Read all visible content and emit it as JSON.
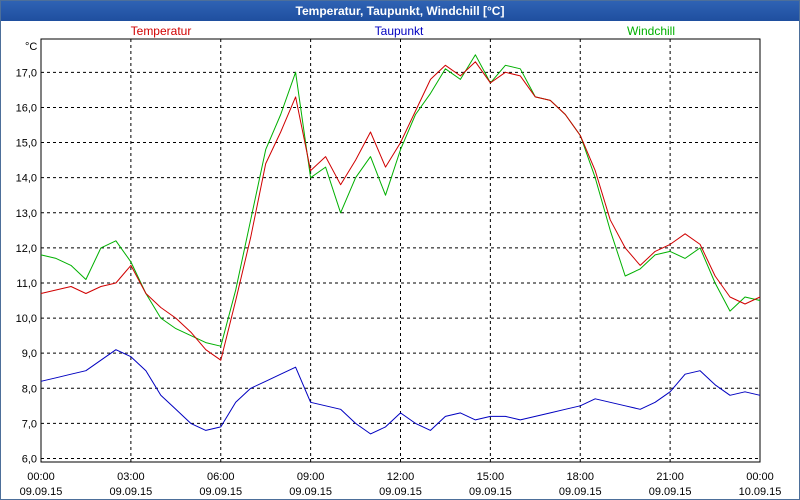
{
  "chart_data": {
    "type": "line",
    "title": "Temperatur, Taupunkt, Windchill [°C]",
    "ylabel": "°C",
    "ylim": [
      5.9,
      17.95
    ],
    "yticks": [
      6.0,
      7.0,
      8.0,
      9.0,
      10.0,
      11.0,
      12.0,
      13.0,
      14.0,
      15.0,
      16.0,
      17.0
    ],
    "ytick_labels": [
      "6,0",
      "7,0",
      "8,0",
      "9,0",
      "10,0",
      "11,0",
      "12,0",
      "13,0",
      "14,0",
      "15,0",
      "16,0",
      "17,0"
    ],
    "xlim": [
      0,
      24
    ],
    "xticks": [
      0,
      3,
      6,
      9,
      12,
      15,
      18,
      21,
      24
    ],
    "xtick_labels": [
      {
        "time": "00:00",
        "date": "09.09.15"
      },
      {
        "time": "03:00",
        "date": "09.09.15"
      },
      {
        "time": "06:00",
        "date": "09.09.15"
      },
      {
        "time": "09:00",
        "date": "09.09.15"
      },
      {
        "time": "12:00",
        "date": "09.09.15"
      },
      {
        "time": "15:00",
        "date": "09.09.15"
      },
      {
        "time": "18:00",
        "date": "09.09.15"
      },
      {
        "time": "21:00",
        "date": "09.09.15"
      },
      {
        "time": "00:00",
        "date": "10.09.15"
      }
    ],
    "grid": true,
    "legend": "top",
    "series": [
      {
        "name": "Temperatur",
        "color": "#d00000",
        "x": [
          0,
          0.5,
          1,
          1.5,
          2,
          2.5,
          3,
          3.5,
          4,
          4.5,
          5,
          5.5,
          6,
          6.5,
          7,
          7.5,
          8,
          8.5,
          9,
          9.5,
          10,
          10.5,
          11,
          11.5,
          12,
          12.5,
          13,
          13.5,
          14,
          14.5,
          15,
          15.5,
          16,
          16.5,
          17,
          17.5,
          18,
          18.5,
          19,
          19.5,
          20,
          20.5,
          21,
          21.5,
          22,
          22.5,
          23,
          23.5,
          24
        ],
        "y": [
          10.7,
          10.8,
          10.9,
          10.7,
          10.9,
          11.0,
          11.5,
          10.7,
          10.3,
          10.0,
          9.6,
          9.1,
          8.8,
          10.5,
          12.3,
          14.4,
          15.3,
          16.3,
          14.2,
          14.6,
          13.8,
          14.5,
          15.3,
          14.3,
          15.0,
          15.9,
          16.8,
          17.2,
          16.9,
          17.3,
          16.7,
          17.0,
          16.9,
          16.3,
          16.2,
          15.8,
          15.2,
          14.2,
          12.8,
          12.0,
          11.5,
          11.9,
          12.1,
          12.4,
          12.1,
          11.2,
          10.6,
          10.4,
          10.6
        ]
      },
      {
        "name": "Taupunkt",
        "color": "#0000c0",
        "x": [
          0,
          0.5,
          1,
          1.5,
          2,
          2.5,
          3,
          3.5,
          4,
          4.5,
          5,
          5.5,
          6,
          6.5,
          7,
          7.5,
          8,
          8.5,
          9,
          9.5,
          10,
          10.5,
          11,
          11.5,
          12,
          12.5,
          13,
          13.5,
          14,
          14.5,
          15,
          15.5,
          16,
          16.5,
          17,
          17.5,
          18,
          18.5,
          19,
          19.5,
          20,
          20.5,
          21,
          21.5,
          22,
          22.5,
          23,
          23.5,
          24
        ],
        "y": [
          8.2,
          8.3,
          8.4,
          8.5,
          8.8,
          9.1,
          8.9,
          8.5,
          7.8,
          7.4,
          7.0,
          6.8,
          6.9,
          7.6,
          8.0,
          8.2,
          8.4,
          8.6,
          7.6,
          7.5,
          7.4,
          7.0,
          6.7,
          6.9,
          7.3,
          7.0,
          6.8,
          7.2,
          7.3,
          7.1,
          7.2,
          7.2,
          7.1,
          7.2,
          7.3,
          7.4,
          7.5,
          7.7,
          7.6,
          7.5,
          7.4,
          7.6,
          7.9,
          8.4,
          8.5,
          8.1,
          7.8,
          7.9,
          7.8
        ]
      },
      {
        "name": "Windchill",
        "color": "#00b000",
        "x": [
          0,
          0.5,
          1,
          1.5,
          2,
          2.5,
          3,
          3.5,
          4,
          4.5,
          5,
          5.5,
          6,
          6.5,
          7,
          7.5,
          8,
          8.5,
          9,
          9.5,
          10,
          10.5,
          11,
          11.5,
          12,
          12.5,
          13,
          13.5,
          14,
          14.5,
          15,
          15.5,
          16,
          16.5,
          17,
          17.5,
          18,
          18.5,
          19,
          19.5,
          20,
          20.5,
          21,
          21.5,
          22,
          22.5,
          23,
          23.5,
          24
        ],
        "y": [
          11.8,
          11.7,
          11.5,
          11.1,
          12.0,
          12.2,
          11.6,
          10.7,
          10.0,
          9.7,
          9.5,
          9.3,
          9.2,
          10.8,
          12.8,
          14.8,
          15.8,
          17.0,
          14.0,
          14.3,
          13.0,
          14.0,
          14.6,
          13.5,
          14.8,
          15.8,
          16.4,
          17.1,
          16.8,
          17.5,
          16.7,
          17.2,
          17.1,
          16.3,
          16.2,
          15.8,
          15.2,
          14.0,
          12.5,
          11.2,
          11.4,
          11.8,
          11.9,
          11.7,
          12.0,
          11.0,
          10.2,
          10.6,
          10.5
        ]
      }
    ]
  }
}
